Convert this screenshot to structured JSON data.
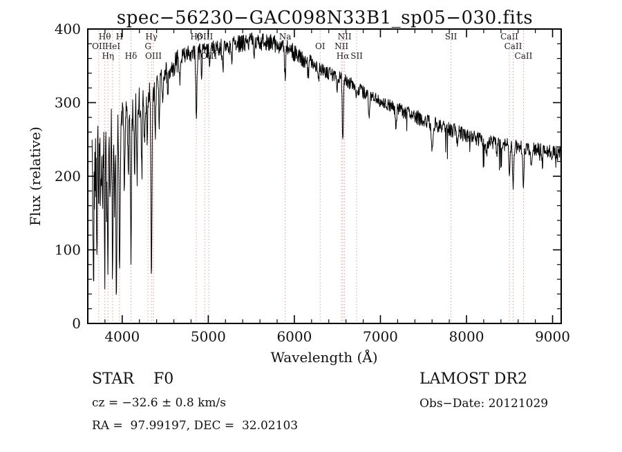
{
  "page": {
    "background": "#ffffff"
  },
  "chart_data": {
    "type": "line",
    "title": "spec−56230−GAC098N33B1_sp05−030.fits",
    "xlabel": "Wavelength (Å)",
    "ylabel": "Flux (relative)",
    "xlim": [
      3600,
      9100
    ],
    "ylim": [
      0,
      400
    ],
    "x_ticks": [
      4000,
      5000,
      6000,
      7000,
      8000,
      9000
    ],
    "x_minor_step": 200,
    "y_ticks": [
      0,
      100,
      200,
      300,
      400
    ],
    "y_minor_step": 20,
    "grid": false,
    "legend": "none",
    "line_color": "#000000",
    "marker_line_color": "#e09999",
    "marker_label_color": "#1a1a1a",
    "series_name": "flux",
    "continuum_points": {
      "wavelength": [
        3650,
        3700,
        3750,
        3800,
        3850,
        3900,
        3950,
        4000,
        4100,
        4200,
        4300,
        4400,
        4500,
        4600,
        4700,
        4800,
        4900,
        5000,
        5100,
        5200,
        5300,
        5400,
        5500,
        5600,
        5700,
        5800,
        5900,
        6000,
        6100,
        6200,
        6300,
        6400,
        6500,
        6600,
        6700,
        6800,
        6900,
        7000,
        7100,
        7200,
        7300,
        7400,
        7500,
        7600,
        7700,
        7800,
        7900,
        8000,
        8100,
        8200,
        8300,
        8400,
        8500,
        8600,
        8700,
        8800,
        8900,
        9000,
        9100
      ],
      "flux": [
        200,
        235,
        245,
        255,
        262,
        268,
        272,
        278,
        288,
        298,
        310,
        322,
        338,
        352,
        362,
        368,
        370,
        372,
        374,
        376,
        378,
        381,
        383,
        383,
        382,
        379,
        374,
        368,
        360,
        352,
        345,
        340,
        336,
        330,
        322,
        314,
        308,
        302,
        296,
        291,
        286,
        281,
        277,
        272,
        268,
        264,
        260,
        256,
        252,
        249,
        246,
        243,
        241,
        239,
        237,
        236,
        234,
        232,
        230
      ]
    },
    "absorption_features": [
      {
        "wavelength": 3665,
        "depth": 180,
        "sigma": 6
      },
      {
        "wavelength": 3705,
        "depth": 130,
        "sigma": 5
      },
      {
        "wavelength": 3727,
        "depth": 80,
        "sigma": 5
      },
      {
        "wavelength": 3750,
        "depth": 95,
        "sigma": 5
      },
      {
        "wavelength": 3770,
        "depth": 110,
        "sigma": 5
      },
      {
        "wavelength": 3798,
        "depth": 170,
        "sigma": 5
      },
      {
        "wavelength": 3820,
        "depth": 100,
        "sigma": 5
      },
      {
        "wavelength": 3835,
        "depth": 185,
        "sigma": 5
      },
      {
        "wavelength": 3860,
        "depth": 90,
        "sigma": 5
      },
      {
        "wavelength": 3889,
        "depth": 205,
        "sigma": 5
      },
      {
        "wavelength": 3912,
        "depth": 110,
        "sigma": 5
      },
      {
        "wavelength": 3933,
        "depth": 235,
        "sigma": 6
      },
      {
        "wavelength": 3970,
        "depth": 215,
        "sigma": 6
      },
      {
        "wavelength": 4026,
        "depth": 105,
        "sigma": 5
      },
      {
        "wavelength": 4070,
        "depth": 85,
        "sigma": 5
      },
      {
        "wavelength": 4102,
        "depth": 200,
        "sigma": 6
      },
      {
        "wavelength": 4144,
        "depth": 75,
        "sigma": 5
      },
      {
        "wavelength": 4172,
        "depth": 95,
        "sigma": 5
      },
      {
        "wavelength": 4227,
        "depth": 100,
        "sigma": 5
      },
      {
        "wavelength": 4260,
        "depth": 70,
        "sigma": 5
      },
      {
        "wavelength": 4290,
        "depth": 80,
        "sigma": 5
      },
      {
        "wavelength": 4340,
        "depth": 255,
        "sigma": 6
      },
      {
        "wavelength": 4385,
        "depth": 70,
        "sigma": 5
      },
      {
        "wavelength": 4430,
        "depth": 55,
        "sigma": 5
      },
      {
        "wavelength": 4472,
        "depth": 45,
        "sigma": 5
      },
      {
        "wavelength": 4530,
        "depth": 35,
        "sigma": 5
      },
      {
        "wavelength": 4668,
        "depth": 30,
        "sigma": 5
      },
      {
        "wavelength": 4861,
        "depth": 90,
        "sigma": 7
      },
      {
        "wavelength": 4922,
        "depth": 32,
        "sigma": 5
      },
      {
        "wavelength": 5015,
        "depth": 28,
        "sigma": 5
      },
      {
        "wavelength": 5170,
        "depth": 32,
        "sigma": 7
      },
      {
        "wavelength": 5270,
        "depth": 25,
        "sigma": 6
      },
      {
        "wavelength": 5530,
        "depth": 20,
        "sigma": 5
      },
      {
        "wavelength": 5893,
        "depth": 35,
        "sigma": 7
      },
      {
        "wavelength": 6160,
        "depth": 18,
        "sigma": 6
      },
      {
        "wavelength": 6280,
        "depth": 20,
        "sigma": 5
      },
      {
        "wavelength": 6495,
        "depth": 25,
        "sigma": 5
      },
      {
        "wavelength": 6563,
        "depth": 90,
        "sigma": 6
      },
      {
        "wavelength": 6720,
        "depth": 20,
        "sigma": 5
      },
      {
        "wavelength": 6870,
        "depth": 28,
        "sigma": 8
      },
      {
        "wavelength": 7180,
        "depth": 22,
        "sigma": 8
      },
      {
        "wavelength": 7600,
        "depth": 30,
        "sigma": 9
      },
      {
        "wavelength": 7890,
        "depth": 18,
        "sigma": 6
      },
      {
        "wavelength": 8230,
        "depth": 20,
        "sigma": 8
      },
      {
        "wavelength": 8350,
        "depth": 18,
        "sigma": 6
      },
      {
        "wavelength": 8498,
        "depth": 45,
        "sigma": 6
      },
      {
        "wavelength": 8542,
        "depth": 62,
        "sigma": 6
      },
      {
        "wavelength": 8662,
        "depth": 55,
        "sigma": 6
      },
      {
        "wavelength": 8750,
        "depth": 30,
        "sigma": 6
      },
      {
        "wavelength": 8880,
        "depth": 20,
        "sigma": 6
      }
    ],
    "spectral_line_markers": [
      {
        "label": "Hθ",
        "wavelength": 3798,
        "row": 1
      },
      {
        "label": "H",
        "wavelength": 3968,
        "row": 1
      },
      {
        "label": "Hγ",
        "wavelength": 4340,
        "row": 1
      },
      {
        "label": "Hβ",
        "wavelength": 4861,
        "row": 1
      },
      {
        "label": "OIII",
        "wavelength": 4959,
        "row": 1
      },
      {
        "label": "Na",
        "wavelength": 5893,
        "row": 1
      },
      {
        "label": "NII",
        "wavelength": 6584,
        "row": 1
      },
      {
        "label": "SII",
        "wavelength": 7820,
        "row": 1
      },
      {
        "label": "CaII",
        "wavelength": 8498,
        "row": 1
      },
      {
        "label": "OII",
        "wavelength": 3727,
        "row": 2
      },
      {
        "label": "HeI",
        "wavelength": 3889,
        "row": 2
      },
      {
        "label": "G",
        "wavelength": 4300,
        "row": 2
      },
      {
        "label": "OI",
        "wavelength": 6300,
        "row": 2
      },
      {
        "label": "NII",
        "wavelength": 6548,
        "row": 2
      },
      {
        "label": "CaII",
        "wavelength": 8542,
        "row": 2
      },
      {
        "label": "Hη",
        "wavelength": 3835,
        "row": 3
      },
      {
        "label": "Hδ",
        "wavelength": 4102,
        "row": 3
      },
      {
        "label": "OIII",
        "wavelength": 4363,
        "row": 3
      },
      {
        "label": "OIII",
        "wavelength": 5007,
        "row": 3
      },
      {
        "label": "Hα",
        "wavelength": 6563,
        "row": 3
      },
      {
        "label": "SII",
        "wavelength": 6724,
        "row": 3
      },
      {
        "label": "CaII",
        "wavelength": 8662,
        "row": 3
      }
    ]
  },
  "footer": {
    "class_label": "STAR    F0",
    "survey": "LAMOST DR2",
    "cz": "cz = −32.6 ± 0.8 km/s",
    "obs_date": "Obs−Date: 20121029",
    "coords": "RA =  97.99197, DEC =  32.02103"
  }
}
